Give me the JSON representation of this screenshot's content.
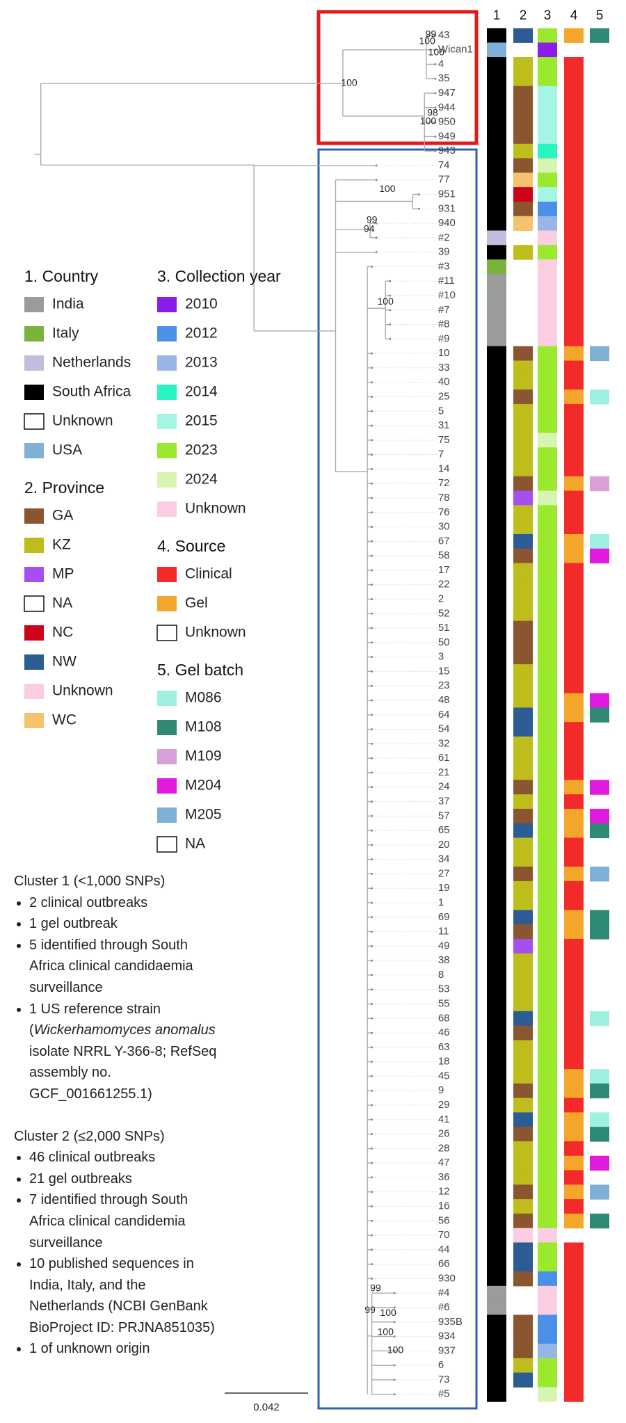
{
  "chart_data": {
    "type": "phylogenetic-tree",
    "columns": [
      "1",
      "2",
      "3",
      "4",
      "5"
    ],
    "legend": [
      {
        "title": "1. Country",
        "items": [
          {
            "label": "India",
            "color": "#9b9b9b"
          },
          {
            "label": "Italy",
            "color": "#7ab23a"
          },
          {
            "label": "Netherlands",
            "color": "#c3bcdc"
          },
          {
            "label": "South Africa",
            "color": "#000000"
          },
          {
            "label": "Unknown",
            "color": "#ffffff"
          },
          {
            "label": "USA",
            "color": "#7fb0d5"
          }
        ]
      },
      {
        "title": "2. Province",
        "items": [
          {
            "label": "GA",
            "color": "#8b5530"
          },
          {
            "label": "KZ",
            "color": "#bdbd1c"
          },
          {
            "label": "MP",
            "color": "#a64ef0"
          },
          {
            "label": "NA",
            "color": "#ffffff"
          },
          {
            "label": "NC",
            "color": "#d0021b"
          },
          {
            "label": "NW",
            "color": "#2d5b94"
          },
          {
            "label": "Unknown",
            "color": "#fbcde2"
          },
          {
            "label": "WC",
            "color": "#f5c36e"
          }
        ]
      },
      {
        "title": "3. Collection year",
        "items": [
          {
            "label": "2010",
            "color": "#8a1de8"
          },
          {
            "label": "2012",
            "color": "#4a90e6"
          },
          {
            "label": "2013",
            "color": "#97b6e6"
          },
          {
            "label": "2014",
            "color": "#2af5c0"
          },
          {
            "label": "2015",
            "color": "#a4f5e4"
          },
          {
            "label": "2023",
            "color": "#9be92e"
          },
          {
            "label": "2024",
            "color": "#d6f5b0"
          },
          {
            "label": "Unknown",
            "color": "#fbcde2"
          }
        ]
      },
      {
        "title": "4. Source",
        "items": [
          {
            "label": "Clinical",
            "color": "#f22a2a"
          },
          {
            "label": "Gel",
            "color": "#f4a62a"
          },
          {
            "label": "Unknown",
            "color": "#ffffff"
          }
        ]
      },
      {
        "title": "5. Gel batch",
        "items": [
          {
            "label": "M086",
            "color": "#9ff0e0"
          },
          {
            "label": "M108",
            "color": "#2e8a74"
          },
          {
            "label": "M109",
            "color": "#d7a0d8"
          },
          {
            "label": "M204",
            "color": "#e219df"
          },
          {
            "label": "M205",
            "color": "#7eb0d6"
          },
          {
            "label": "NA",
            "color": "#ffffff"
          }
        ]
      }
    ],
    "tips": {
      "labels": [
        "43",
        "Wican1",
        "4",
        "35",
        "947",
        "944",
        "950",
        "949",
        "943",
        "74",
        "77",
        "951",
        "931",
        "940",
        "#2",
        "39",
        "#3",
        "#11",
        "#10",
        "#7",
        "#8",
        "#9",
        "10",
        "33",
        "40",
        "25",
        "5",
        "31",
        "75",
        "7",
        "14",
        "72",
        "78",
        "76",
        "30",
        "67",
        "58",
        "17",
        "22",
        "2",
        "52",
        "51",
        "50",
        "3",
        "15",
        "23",
        "48",
        "64",
        "54",
        "32",
        "61",
        "21",
        "24",
        "37",
        "57",
        "65",
        "20",
        "34",
        "27",
        "19",
        "1",
        "69",
        "11",
        "49",
        "38",
        "8",
        "53",
        "55",
        "68",
        "46",
        "63",
        "18",
        "45",
        "9",
        "29",
        "41",
        "26",
        "28",
        "47",
        "36",
        "12",
        "16",
        "56",
        "70",
        "44",
        "66",
        "930",
        "#4",
        "#6",
        "935B",
        "934",
        "937",
        "6",
        "73",
        "#5"
      ],
      "country": [
        "South Africa",
        "USA",
        "South Africa",
        "South Africa",
        "South Africa",
        "South Africa",
        "South Africa",
        "South Africa",
        "South Africa",
        "South Africa",
        "South Africa",
        "South Africa",
        "South Africa",
        "South Africa",
        "Netherlands",
        "South Africa",
        "Italy",
        "India",
        "India",
        "India",
        "India",
        "India",
        "South Africa",
        "South Africa",
        "South Africa",
        "South Africa",
        "South Africa",
        "South Africa",
        "South Africa",
        "South Africa",
        "South Africa",
        "South Africa",
        "South Africa",
        "South Africa",
        "South Africa",
        "South Africa",
        "South Africa",
        "South Africa",
        "South Africa",
        "South Africa",
        "South Africa",
        "South Africa",
        "South Africa",
        "South Africa",
        "South Africa",
        "South Africa",
        "South Africa",
        "South Africa",
        "South Africa",
        "South Africa",
        "South Africa",
        "South Africa",
        "South Africa",
        "South Africa",
        "South Africa",
        "South Africa",
        "South Africa",
        "South Africa",
        "South Africa",
        "South Africa",
        "South Africa",
        "South Africa",
        "South Africa",
        "South Africa",
        "South Africa",
        "South Africa",
        "South Africa",
        "South Africa",
        "South Africa",
        "South Africa",
        "South Africa",
        "South Africa",
        "South Africa",
        "South Africa",
        "South Africa",
        "South Africa",
        "South Africa",
        "South Africa",
        "South Africa",
        "South Africa",
        "South Africa",
        "South Africa",
        "South Africa",
        "South Africa",
        "South Africa",
        "South Africa",
        "South Africa",
        "India",
        "India",
        "South Africa",
        "South Africa",
        "South Africa",
        "South Africa",
        "South Africa",
        "South Africa"
      ],
      "province": [
        "NW",
        null,
        "KZ",
        "KZ",
        "GA",
        "GA",
        "GA",
        "GA",
        "KZ",
        "GA",
        "WC",
        "NC",
        "GA",
        "WC",
        null,
        "KZ",
        null,
        null,
        null,
        null,
        null,
        null,
        "GA",
        "KZ",
        "KZ",
        "GA",
        "KZ",
        "KZ",
        "KZ",
        "KZ",
        "KZ",
        "GA",
        "MP",
        "KZ",
        "KZ",
        "NW",
        "GA",
        "KZ",
        "KZ",
        "KZ",
        "KZ",
        "GA",
        "GA",
        "GA",
        "KZ",
        "KZ",
        "KZ",
        "NW",
        "NW",
        "KZ",
        "KZ",
        "KZ",
        "GA",
        "KZ",
        "GA",
        "NW",
        "KZ",
        "KZ",
        "GA",
        "KZ",
        "KZ",
        "NW",
        "GA",
        "MP",
        "KZ",
        "KZ",
        "KZ",
        "KZ",
        "NW",
        "GA",
        "KZ",
        "KZ",
        "KZ",
        "GA",
        "KZ",
        "NW",
        "GA",
        "KZ",
        "KZ",
        "KZ",
        "GA",
        "KZ",
        "GA",
        "Unknown",
        "NW",
        "NW",
        "GA",
        null,
        null,
        "GA",
        "GA",
        "GA",
        "KZ",
        "NW",
        null
      ],
      "collection_year": [
        "2023",
        "2010",
        "2023",
        "2023",
        "2015",
        "2015",
        "2015",
        "2015",
        "2014",
        "2024",
        "2023",
        "2015",
        "2012",
        "2013",
        "Unknown",
        "2023",
        "Unknown",
        "Unknown",
        "Unknown",
        "Unknown",
        "Unknown",
        "Unknown",
        "2023",
        "2023",
        "2023",
        "2023",
        "2023",
        "2023",
        "2024",
        "2023",
        "2023",
        "2023",
        "2024",
        "2023",
        "2023",
        "2023",
        "2023",
        "2023",
        "2023",
        "2023",
        "2023",
        "2023",
        "2023",
        "2023",
        "2023",
        "2023",
        "2023",
        "2023",
        "2023",
        "2023",
        "2023",
        "2023",
        "2023",
        "2023",
        "2023",
        "2023",
        "2023",
        "2023",
        "2023",
        "2023",
        "2023",
        "2023",
        "2023",
        "2023",
        "2023",
        "2023",
        "2023",
        "2023",
        "2023",
        "2023",
        "2023",
        "2023",
        "2023",
        "2023",
        "2023",
        "2023",
        "2023",
        "2023",
        "2023",
        "2023",
        "2023",
        "2023",
        "2023",
        "Unknown",
        "2023",
        "2023",
        "2012",
        "Unknown",
        "Unknown",
        "2012",
        "2012",
        "2013",
        "2023",
        "2023",
        "2024"
      ],
      "source": [
        "Gel",
        null,
        "Clinical",
        "Clinical",
        "Clinical",
        "Clinical",
        "Clinical",
        "Clinical",
        "Clinical",
        "Clinical",
        "Clinical",
        "Clinical",
        "Clinical",
        "Clinical",
        "Clinical",
        "Clinical",
        "Clinical",
        "Clinical",
        "Clinical",
        "Clinical",
        "Clinical",
        "Clinical",
        "Gel",
        "Clinical",
        "Clinical",
        "Gel",
        "Clinical",
        "Clinical",
        "Clinical",
        "Clinical",
        "Clinical",
        "Gel",
        "Clinical",
        "Clinical",
        "Clinical",
        "Gel",
        "Gel",
        "Clinical",
        "Clinical",
        "Clinical",
        "Clinical",
        "Clinical",
        "Clinical",
        "Clinical",
        "Clinical",
        "Clinical",
        "Gel",
        "Gel",
        "Clinical",
        "Clinical",
        "Clinical",
        "Clinical",
        "Gel",
        "Clinical",
        "Gel",
        "Gel",
        "Clinical",
        "Clinical",
        "Gel",
        "Clinical",
        "Clinical",
        "Gel",
        "Gel",
        "Clinical",
        "Clinical",
        "Clinical",
        "Clinical",
        "Clinical",
        "Clinical",
        "Clinical",
        "Clinical",
        "Clinical",
        "Gel",
        "Gel",
        "Clinical",
        "Gel",
        "Gel",
        "Clinical",
        "Gel",
        "Clinical",
        "Gel",
        "Clinical",
        "Gel",
        null,
        "Clinical",
        "Clinical",
        "Clinical",
        "Clinical",
        "Clinical",
        "Clinical",
        "Clinical",
        "Clinical",
        "Clinical",
        "Clinical",
        "Clinical"
      ],
      "gel_batch": [
        "M108",
        null,
        null,
        null,
        null,
        null,
        null,
        null,
        null,
        null,
        null,
        null,
        null,
        null,
        null,
        null,
        null,
        null,
        null,
        null,
        null,
        null,
        "M205",
        null,
        null,
        "M086",
        null,
        null,
        null,
        null,
        null,
        "M109",
        null,
        null,
        null,
        "M086",
        "M204",
        null,
        null,
        null,
        null,
        null,
        null,
        null,
        null,
        null,
        "M204",
        "M108",
        null,
        null,
        null,
        null,
        "M204",
        null,
        "M204",
        "M108",
        null,
        null,
        "M205",
        null,
        null,
        "M108",
        "M108",
        null,
        null,
        null,
        null,
        null,
        "M086",
        null,
        null,
        null,
        "M086",
        "M108",
        null,
        "M086",
        "M108",
        null,
        "M204",
        null,
        "M205",
        null,
        "M108",
        null,
        null,
        null,
        null,
        null,
        null,
        null,
        null,
        null,
        null,
        null,
        null
      ]
    },
    "support_labels": [
      "99",
      "100",
      "100",
      "100",
      "98",
      "100",
      "100",
      "99",
      "94",
      "100",
      "99",
      "99",
      "100",
      "100",
      "100"
    ],
    "scale_bar": 0.042,
    "notes": [
      {
        "heading": "Cluster 1 (<1,000 SNPs)",
        "bullets": [
          [
            "2 clinical outbreaks"
          ],
          [
            "1 gel outbreak"
          ],
          [
            "5 identified through South Africa clinical candidaemia surveillance"
          ],
          [
            "1 US reference strain (",
            "Wickerhamomyces anomalus",
            " isolate NRRL Y-366-8; RefSeq assembly no. GCF_001661255.1)"
          ]
        ]
      },
      {
        "heading": "Cluster 2 (≤2,000 SNPs)",
        "bullets": [
          [
            "46 clinical outbreaks"
          ],
          [
            "21 gel outbreaks"
          ],
          [
            "7 identified through South Africa clinical candidemia surveillance"
          ],
          [
            "10 published sequences in India, Italy, and the Netherlands (NCBI GenBank BioProject ID: PRJNA851035)"
          ],
          [
            "1 of unknown origin"
          ]
        ]
      }
    ]
  }
}
